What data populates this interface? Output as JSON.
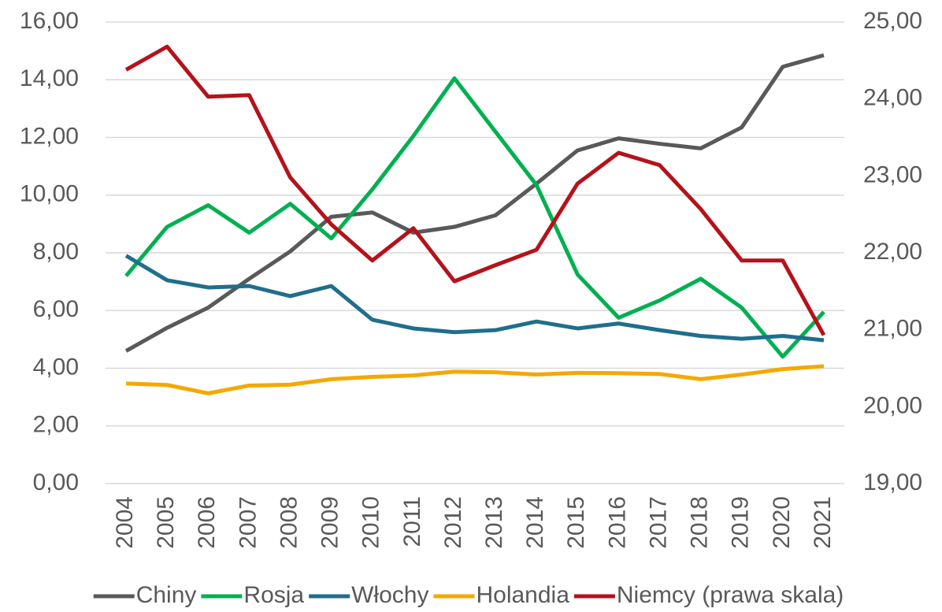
{
  "chart_data": {
    "type": "line",
    "categories": [
      "2004",
      "2005",
      "2006",
      "2007",
      "2008",
      "2009",
      "2010",
      "2011",
      "2012",
      "2013",
      "2014",
      "2015",
      "2016",
      "2017",
      "2018",
      "2019",
      "2020",
      "2021"
    ],
    "series": [
      {
        "name": "Chiny",
        "color": "#595959",
        "values": [
          4.6,
          5.4,
          6.1,
          7.1,
          8.05,
          9.25,
          9.4,
          8.7,
          8.9,
          9.3,
          10.4,
          11.55,
          11.97,
          11.78,
          11.62,
          12.35,
          14.45,
          14.85
        ]
      },
      {
        "name": "Rosja",
        "color": "#00b050",
        "values": [
          7.2,
          8.9,
          9.65,
          8.7,
          9.7,
          8.5,
          10.2,
          12.05,
          14.05,
          12.2,
          10.35,
          7.25,
          5.75,
          6.35,
          7.1,
          6.1,
          4.4,
          5.95
        ]
      },
      {
        "name": "Włochy",
        "color": "#1f6e8c",
        "values": [
          7.9,
          7.05,
          6.8,
          6.85,
          6.5,
          6.85,
          5.68,
          5.38,
          5.25,
          5.32,
          5.62,
          5.38,
          5.55,
          5.32,
          5.12,
          5.02,
          5.12,
          4.97
        ]
      },
      {
        "name": "Holandia",
        "color": "#f5a800",
        "values": [
          3.47,
          3.42,
          3.13,
          3.4,
          3.43,
          3.62,
          3.7,
          3.75,
          3.88,
          3.86,
          3.78,
          3.84,
          3.83,
          3.8,
          3.62,
          3.78,
          3.97,
          4.07
        ]
      },
      {
        "name": "Niemcy (prawa skala)",
        "color": "#b5121b",
        "axis": "y2",
        "values": [
          24.38,
          24.68,
          24.03,
          24.05,
          22.98,
          22.37,
          21.9,
          22.32,
          21.63,
          21.84,
          22.04,
          22.9,
          23.3,
          23.14,
          22.57,
          21.9,
          21.9,
          20.93
        ]
      }
    ],
    "ylim": [
      0,
      16
    ],
    "yticks": [
      {
        "value": 0,
        "label": "0,00"
      },
      {
        "value": 2,
        "label": "2,00"
      },
      {
        "value": 4,
        "label": "4,00"
      },
      {
        "value": 6,
        "label": "6,00"
      },
      {
        "value": 8,
        "label": "8,00"
      },
      {
        "value": 10,
        "label": "10,00"
      },
      {
        "value": 12,
        "label": "12,00"
      },
      {
        "value": 14,
        "label": "14,00"
      },
      {
        "value": 16,
        "label": "16,00"
      }
    ],
    "y2lim": [
      19,
      25
    ],
    "y2ticks": [
      {
        "value": 19,
        "label": "19,00"
      },
      {
        "value": 20,
        "label": "20,00"
      },
      {
        "value": 21,
        "label": "21,00"
      },
      {
        "value": 22,
        "label": "22,00"
      },
      {
        "value": 23,
        "label": "23,00"
      },
      {
        "value": 24,
        "label": "24,00"
      },
      {
        "value": 25,
        "label": "25,00"
      }
    ],
    "grid": true,
    "legend": "bottom"
  }
}
